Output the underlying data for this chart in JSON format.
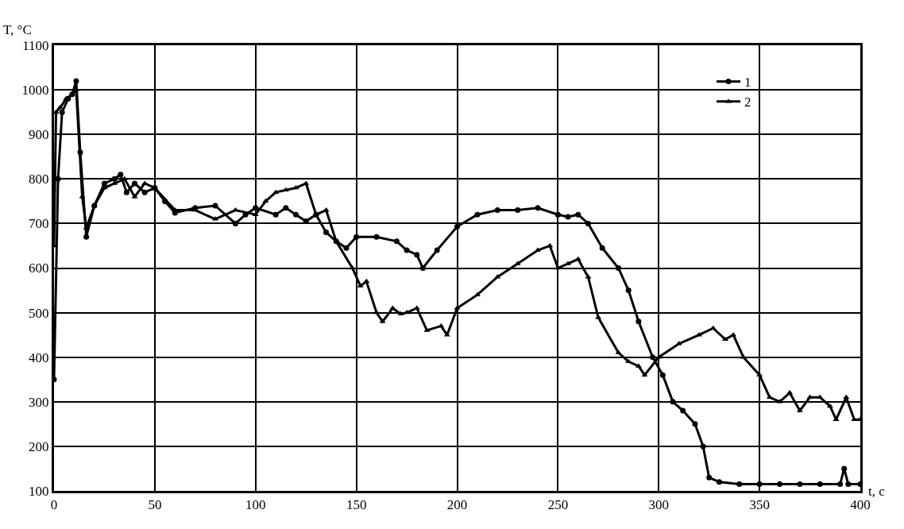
{
  "chart_data": {
    "type": "line",
    "xlabel": "t, c",
    "ylabel": "T, °C",
    "xlim": [
      0,
      400
    ],
    "ylim": [
      100,
      1100
    ],
    "xticks": [
      0,
      50,
      100,
      150,
      200,
      250,
      300,
      350,
      400
    ],
    "yticks": [
      100,
      200,
      300,
      400,
      500,
      600,
      700,
      800,
      900,
      1000,
      1100
    ],
    "grid": true,
    "legend": "top right",
    "line_style": "solid",
    "series": [
      {
        "name": "1",
        "color": "#000000",
        "marker": "circle",
        "x": [
          0,
          2,
          4,
          7,
          9,
          11,
          13,
          16,
          20,
          25,
          30,
          33,
          36,
          40,
          45,
          50,
          55,
          60,
          70,
          80,
          90,
          95,
          100,
          110,
          115,
          120,
          125,
          130,
          135,
          140,
          145,
          150,
          160,
          170,
          175,
          180,
          183,
          190,
          200,
          210,
          220,
          230,
          240,
          250,
          255,
          260,
          265,
          272,
          280,
          285,
          290,
          297,
          302,
          307,
          312,
          318,
          322,
          325,
          330,
          340,
          350,
          360,
          370,
          380,
          390,
          392,
          394,
          400
        ],
        "values": [
          350,
          800,
          950,
          980,
          990,
          1020,
          860,
          670,
          740,
          790,
          800,
          810,
          770,
          790,
          770,
          780,
          750,
          724,
          735,
          740,
          700,
          720,
          735,
          720,
          735,
          720,
          705,
          720,
          680,
          660,
          645,
          670,
          670,
          660,
          640,
          630,
          600,
          640,
          693,
          720,
          730,
          730,
          735,
          720,
          715,
          720,
          700,
          645,
          600,
          550,
          480,
          400,
          360,
          300,
          280,
          250,
          200,
          130,
          120,
          115,
          115,
          115,
          115,
          115,
          115,
          150,
          115,
          115
        ]
      },
      {
        "name": "2",
        "color": "#000000",
        "marker": "triangle",
        "x": [
          0,
          1,
          3,
          6,
          9,
          11,
          14,
          16,
          20,
          25,
          30,
          35,
          40,
          45,
          50,
          60,
          70,
          80,
          90,
          100,
          105,
          110,
          115,
          120,
          125,
          130,
          135,
          140,
          148,
          152,
          155,
          160,
          163,
          168,
          172,
          175,
          180,
          185,
          192,
          195,
          200,
          210,
          220,
          230,
          240,
          246,
          250,
          255,
          260,
          265,
          270,
          280,
          285,
          290,
          293,
          300,
          310,
          320,
          327,
          333,
          337,
          342,
          350,
          355,
          360,
          365,
          370,
          375,
          380,
          385,
          388,
          393,
          397,
          400
        ],
        "values": [
          650,
          950,
          960,
          980,
          990,
          1000,
          760,
          690,
          740,
          780,
          790,
          800,
          760,
          790,
          780,
          730,
          730,
          710,
          730,
          720,
          750,
          770,
          775,
          780,
          790,
          720,
          730,
          660,
          600,
          560,
          570,
          500,
          480,
          510,
          497,
          500,
          510,
          460,
          470,
          450,
          510,
          540,
          580,
          610,
          640,
          650,
          600,
          610,
          620,
          580,
          489,
          410,
          390,
          380,
          360,
          400,
          430,
          450,
          465,
          440,
          450,
          400,
          360,
          310,
          300,
          320,
          280,
          310,
          310,
          290,
          260,
          310,
          260,
          260
        ]
      }
    ]
  }
}
